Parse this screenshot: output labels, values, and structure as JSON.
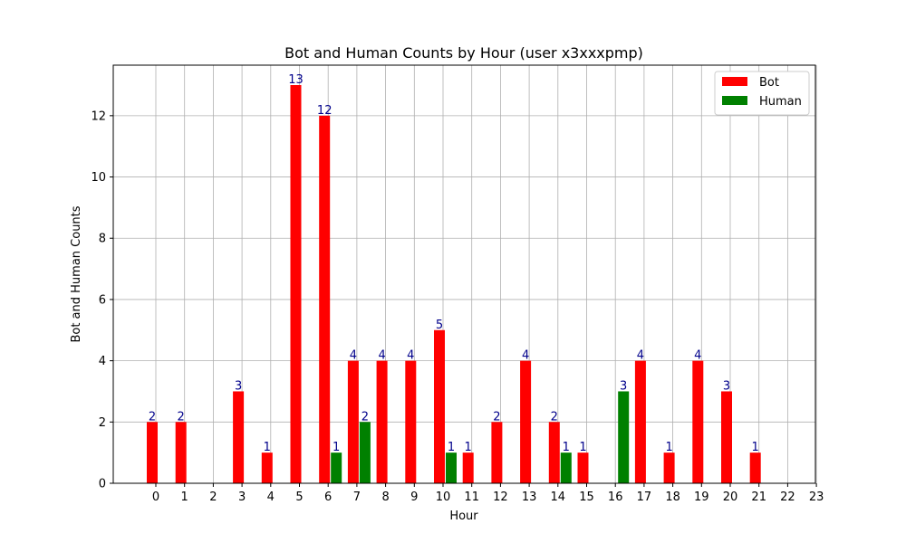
{
  "chart_data": {
    "type": "bar",
    "title": "Bot and Human Counts by Hour (user x3xxxpmp)",
    "xlabel": "Hour",
    "ylabel": "Bot and Human Counts",
    "x_ticks": [
      "0",
      "1",
      "2",
      "3",
      "4",
      "5",
      "6",
      "7",
      "8",
      "9",
      "10",
      "11",
      "12",
      "13",
      "14",
      "15",
      "16",
      "17",
      "18",
      "19",
      "20",
      "21",
      "22",
      "23"
    ],
    "y_ticks": [
      "0",
      "2",
      "4",
      "6",
      "8",
      "10",
      "12"
    ],
    "ylim": [
      0,
      13.65
    ],
    "grid": true,
    "legend_position": "top-right",
    "label_color": "#00008b",
    "series": [
      {
        "name": "Bot",
        "color": "#ff0000",
        "points": [
          {
            "hour": 0,
            "value": 2
          },
          {
            "hour": 1,
            "value": 2
          },
          {
            "hour": 3,
            "value": 3
          },
          {
            "hour": 4,
            "value": 1
          },
          {
            "hour": 5,
            "value": 13
          },
          {
            "hour": 6,
            "value": 12
          },
          {
            "hour": 7,
            "value": 4
          },
          {
            "hour": 8,
            "value": 4
          },
          {
            "hour": 9,
            "value": 4
          },
          {
            "hour": 10,
            "value": 5
          },
          {
            "hour": 11,
            "value": 1
          },
          {
            "hour": 12,
            "value": 2
          },
          {
            "hour": 13,
            "value": 4
          },
          {
            "hour": 14,
            "value": 2
          },
          {
            "hour": 15,
            "value": 1
          },
          {
            "hour": 17,
            "value": 4
          },
          {
            "hour": 18,
            "value": 1
          },
          {
            "hour": 19,
            "value": 4
          },
          {
            "hour": 20,
            "value": 3
          },
          {
            "hour": 21,
            "value": 1
          }
        ]
      },
      {
        "name": "Human",
        "color": "#008000",
        "points": [
          {
            "hour": 6,
            "value": 1
          },
          {
            "hour": 7,
            "value": 2
          },
          {
            "hour": 10,
            "value": 1
          },
          {
            "hour": 14,
            "value": 1
          },
          {
            "hour": 16,
            "value": 3
          }
        ]
      }
    ]
  }
}
